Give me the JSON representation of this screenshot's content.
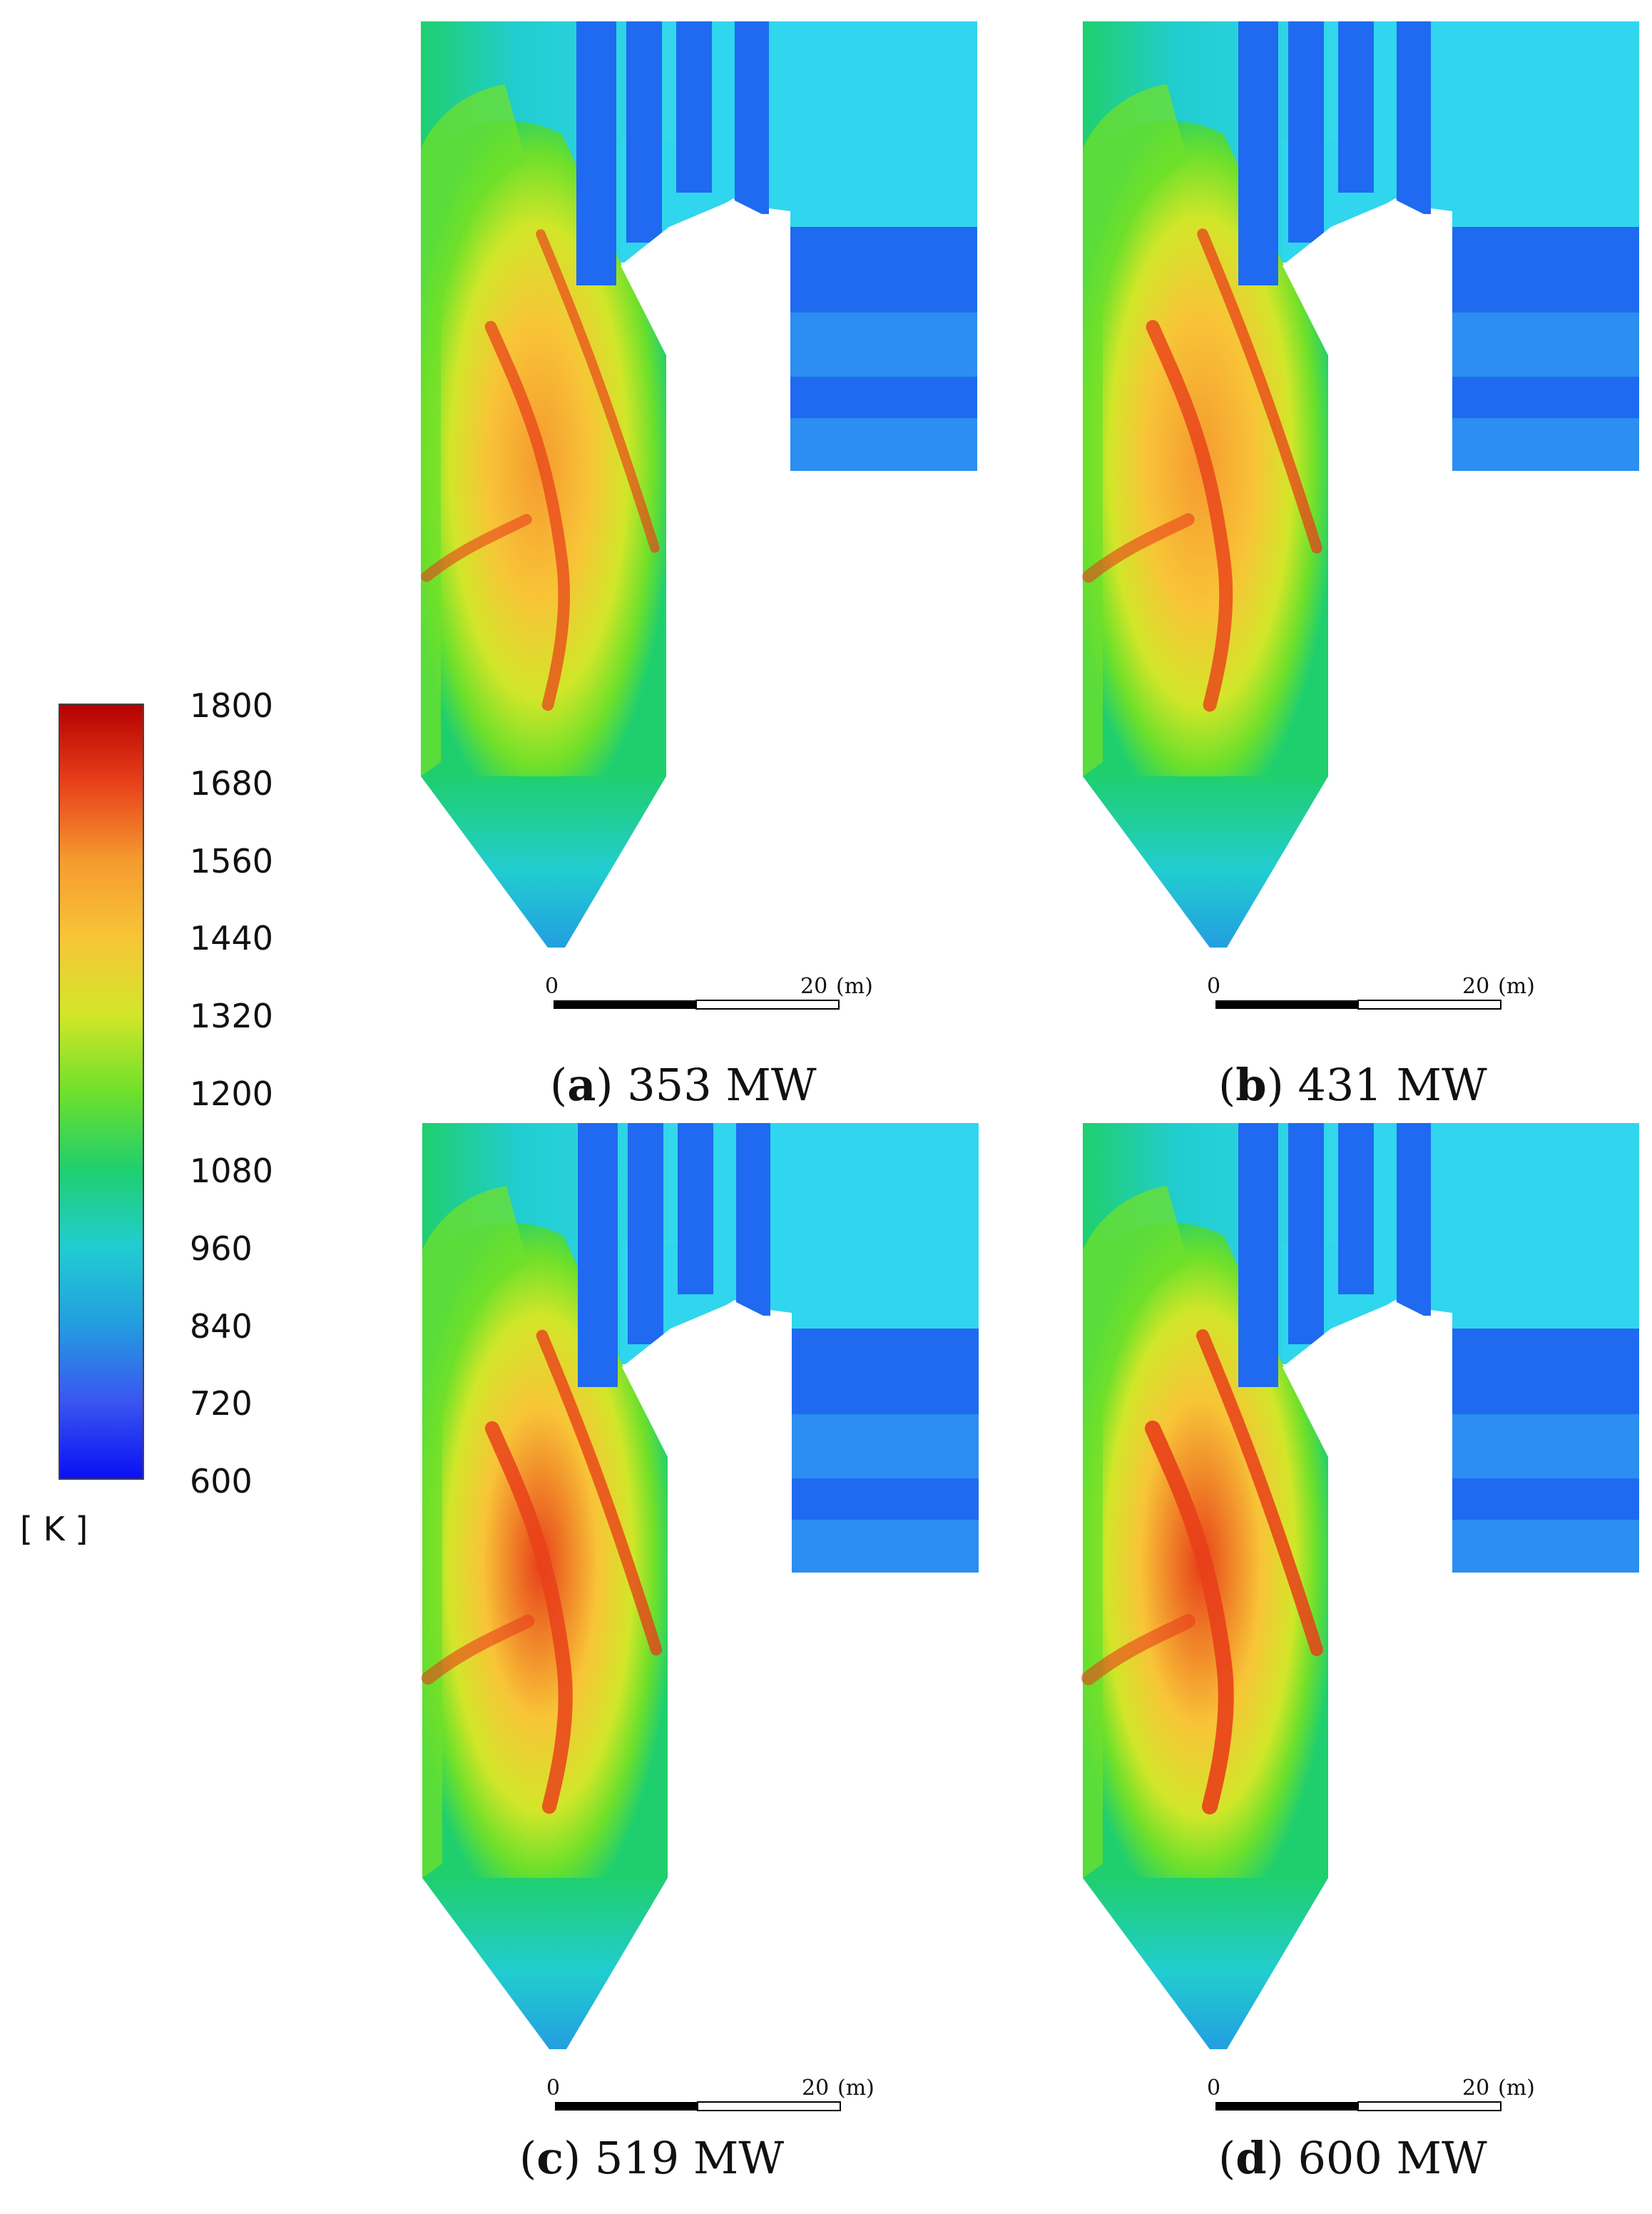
{
  "legend": {
    "ticks": [
      "1800",
      "1680",
      "1560",
      "1440",
      "1320",
      "1200",
      "1080",
      "960",
      "840",
      "720",
      "600"
    ],
    "unit": "[ K ]",
    "colors": [
      "#b40000",
      "#e8401a",
      "#f59a2f",
      "#f8c437",
      "#d2e629",
      "#6fe02a",
      "#1fcf6e",
      "#21cdd0",
      "#239ee0",
      "#3a56f0",
      "#0a10f5"
    ]
  },
  "panels": [
    {
      "letter": "a",
      "label": "353 MW",
      "intensity": 0.55,
      "scale": {
        "start": "0",
        "end": "20",
        "unit": "(m)"
      }
    },
    {
      "letter": "b",
      "label": "431 MW",
      "intensity": 0.75,
      "scale": {
        "start": "0",
        "end": "20",
        "unit": "(m)"
      }
    },
    {
      "letter": "c",
      "label": "519 MW",
      "intensity": 0.85,
      "scale": {
        "start": "0",
        "end": "20",
        "unit": "(m)"
      }
    },
    {
      "letter": "d",
      "label": "600 MW",
      "intensity": 1.0,
      "scale": {
        "start": "0",
        "end": "20",
        "unit": "(m)"
      }
    }
  ]
}
